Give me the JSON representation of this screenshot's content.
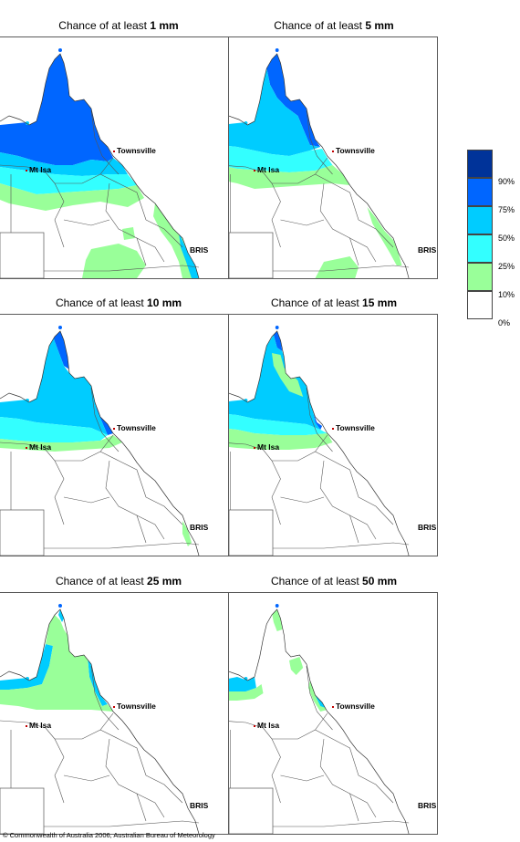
{
  "panels": [
    {
      "prefix": "Chance of at least ",
      "amount": "1 mm"
    },
    {
      "prefix": "Chance of at least ",
      "amount": "5 mm"
    },
    {
      "prefix": "Chance of at least ",
      "amount": "10 mm"
    },
    {
      "prefix": "Chance of at least ",
      "amount": "15 mm"
    },
    {
      "prefix": "Chance of at least ",
      "amount": "25 mm"
    },
    {
      "prefix": "Chance of at least ",
      "amount": "50 mm"
    }
  ],
  "places": {
    "townsville": "Townsville",
    "mt_isa": "Mt Isa",
    "bris": "BRIS"
  },
  "legend": {
    "labels": [
      "90%",
      "75%",
      "50%",
      "25%",
      "10%",
      "0%"
    ],
    "colors": [
      "#003399",
      "#0066ff",
      "#00ccff",
      "#33ffff",
      "#99ff99",
      "#ffffff"
    ]
  },
  "copyright": "© Commonwealth of Australia 2006, Australian Bureau of Meteorology"
}
